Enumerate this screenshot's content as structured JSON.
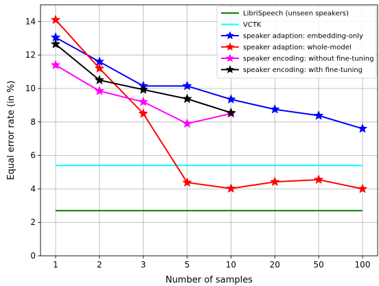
{
  "chart_data": {
    "type": "line",
    "title": "",
    "xlabel": "Number of samples",
    "ylabel": "Equal error rate (in %)",
    "categories": [
      "1",
      "2",
      "3",
      "5",
      "10",
      "20",
      "50",
      "100"
    ],
    "ylim": [
      0,
      15
    ],
    "yticks": [
      0,
      2,
      4,
      6,
      8,
      10,
      12,
      14
    ],
    "grid": true,
    "legend_position": "top-right",
    "series": [
      {
        "name": "LibriSpeech (unseen speakers)",
        "color": "#008000",
        "marker": "none",
        "values": [
          2.7,
          2.7,
          2.7,
          2.7,
          2.7,
          2.7,
          2.7,
          2.7
        ]
      },
      {
        "name": "VCTK",
        "color": "#00ffff",
        "marker": "none",
        "values": [
          5.4,
          5.4,
          5.4,
          5.4,
          5.4,
          5.4,
          5.4,
          5.4
        ]
      },
      {
        "name": "speaker adaption: embedding-only",
        "color": "#0000ff",
        "marker": "star",
        "values": [
          13.05,
          11.6,
          10.15,
          10.15,
          9.35,
          8.75,
          8.38,
          7.6
        ]
      },
      {
        "name": "speaker adaption: whole-model",
        "color": "#ff0000",
        "marker": "star",
        "values": [
          14.1,
          11.2,
          8.5,
          4.38,
          4.02,
          4.42,
          4.55,
          4.0
        ]
      },
      {
        "name": "speaker encoding: without fine-tuning",
        "color": "#ff00ff",
        "marker": "star",
        "values": [
          11.4,
          9.85,
          9.2,
          7.9,
          8.5,
          null,
          null,
          null
        ]
      },
      {
        "name": "speaker encoding: with fine-tuning",
        "color": "#000000",
        "marker": "star",
        "values": [
          12.65,
          10.5,
          9.93,
          9.38,
          8.55,
          null,
          null,
          null
        ]
      }
    ]
  }
}
